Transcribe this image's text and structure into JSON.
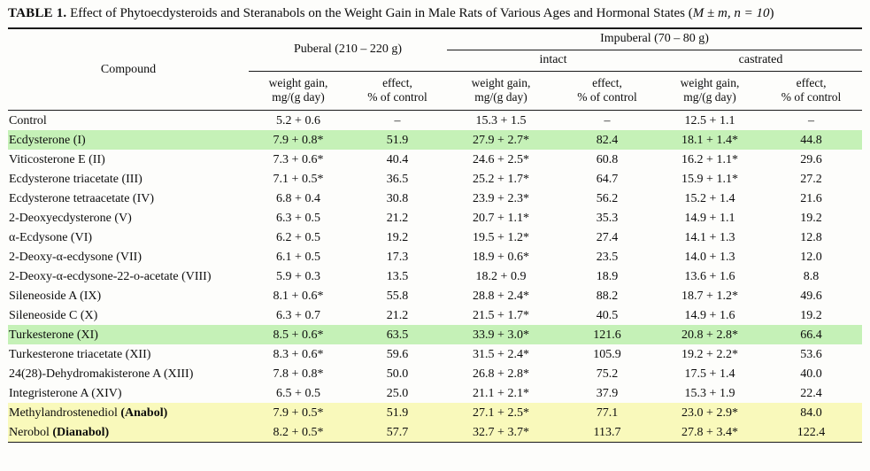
{
  "caption": {
    "label": "TABLE 1.",
    "text_pre": "Effect of Phytoecdysteroids and Steranabols on the Weight Gain in Male Rats of Various Ages and Hormonal States (",
    "stats": "M ± m, n = 10",
    "text_post": ")"
  },
  "header": {
    "compound": "Compound",
    "puberal": "Puberal (210 – 220 g)",
    "impuberal": "Impuberal (70 – 80 g)",
    "intact": "intact",
    "castrated": "castrated",
    "weight_gain": "weight gain,\nmg/(g day)",
    "effect": "effect,\n% of control"
  },
  "highlight_colors": {
    "green": "#c5f1b7",
    "yellow": "#f9f9bb"
  },
  "table": {
    "rows": [
      {
        "compound": "Control",
        "highlight": "",
        "cells": [
          "5.2 + 0.6",
          "–",
          "15.3 + 1.5",
          "–",
          "12.5 + 1.1",
          "–"
        ]
      },
      {
        "compound": "Ecdysterone (I)",
        "highlight": "green",
        "cells": [
          "7.9 + 0.8*",
          "51.9",
          "27.9 + 2.7*",
          "82.4",
          "18.1 + 1.4*",
          "44.8"
        ]
      },
      {
        "compound": "Viticosterone E (II)",
        "highlight": "",
        "cells": [
          "7.3 + 0.6*",
          "40.4",
          "24.6 + 2.5*",
          "60.8",
          "16.2 + 1.1*",
          "29.6"
        ]
      },
      {
        "compound": "Ecdysterone triacetate (III)",
        "highlight": "",
        "cells": [
          "7.1 + 0.5*",
          "36.5",
          "25.2 + 1.7*",
          "64.7",
          "15.9 + 1.1*",
          "27.2"
        ]
      },
      {
        "compound": "Ecdysterone tetraacetate (IV)",
        "highlight": "",
        "cells": [
          "6.8 + 0.4",
          "30.8",
          "23.9 + 2.3*",
          "56.2",
          "15.2 + 1.4",
          "21.6"
        ]
      },
      {
        "compound": "2-Deoxyecdysterone (V)",
        "highlight": "",
        "cells": [
          "6.3 + 0.5",
          "21.2",
          "20.7 + 1.1*",
          "35.3",
          "14.9 + 1.1",
          "19.2"
        ]
      },
      {
        "compound": "α-Ecdysone (VI)",
        "highlight": "",
        "cells": [
          "6.2 + 0.5",
          "19.2",
          "19.5 + 1.2*",
          "27.4",
          "14.1 + 1.3",
          "12.8"
        ]
      },
      {
        "compound": "2-Deoxy-α-ecdysone (VII)",
        "highlight": "",
        "cells": [
          "6.1 + 0.5",
          "17.3",
          "18.9 + 0.6*",
          "23.5",
          "14.0 + 1.3",
          "12.0"
        ]
      },
      {
        "compound": "2-Deoxy-α-ecdysone-22-o-acetate (VIII)",
        "highlight": "",
        "cells": [
          "5.9 + 0.3",
          "13.5",
          "18.2 + 0.9",
          "18.9",
          "13.6 + 1.6",
          "8.8"
        ]
      },
      {
        "compound": "Sileneoside A (IX)",
        "highlight": "",
        "cells": [
          "8.1 + 0.6*",
          "55.8",
          "28.8 + 2.4*",
          "88.2",
          "18.7 + 1.2*",
          "49.6"
        ]
      },
      {
        "compound": "Sileneoside C (X)",
        "highlight": "",
        "cells": [
          "6.3 + 0.7",
          "21.2",
          "21.5 + 1.7*",
          "40.5",
          "14.9 + 1.6",
          "19.2"
        ]
      },
      {
        "compound": "Turkesterone (XI)",
        "highlight": "green",
        "cells": [
          "8.5 + 0.6*",
          "63.5",
          "33.9 + 3.0*",
          "121.6",
          "20.8 + 2.8*",
          "66.4"
        ]
      },
      {
        "compound": "Turkesterone triacetate (XII)",
        "highlight": "",
        "cells": [
          "8.3 + 0.6*",
          "59.6",
          "31.5 + 2.4*",
          "105.9",
          "19.2 + 2.2*",
          "53.6"
        ]
      },
      {
        "compound": "24(28)-Dehydromakisterone A (XIII)",
        "highlight": "",
        "cells": [
          "7.8 + 0.8*",
          "50.0",
          "26.8 + 2.8*",
          "75.2",
          "17.5 + 1.4",
          "40.0"
        ]
      },
      {
        "compound": "Integristerone A (XIV)",
        "highlight": "",
        "cells": [
          "6.5 + 0.5",
          "25.0",
          "21.1 + 2.1*",
          "37.9",
          "15.3 + 1.9",
          "22.4"
        ]
      },
      {
        "compound": "Methylandrostenediol",
        "compound_bold": "(Anabol)",
        "highlight": "yellow",
        "cells": [
          "7.9 + 0.5*",
          "51.9",
          "27.1 + 2.5*",
          "77.1",
          "23.0 + 2.9*",
          "84.0"
        ]
      },
      {
        "compound": "Nerobol",
        "compound_bold": "(Dianabol)",
        "highlight": "yellow",
        "cells": [
          "8.2 + 0.5*",
          "57.7",
          "32.7 + 3.7*",
          "113.7",
          "27.8 + 3.4*",
          "122.4"
        ]
      }
    ]
  }
}
